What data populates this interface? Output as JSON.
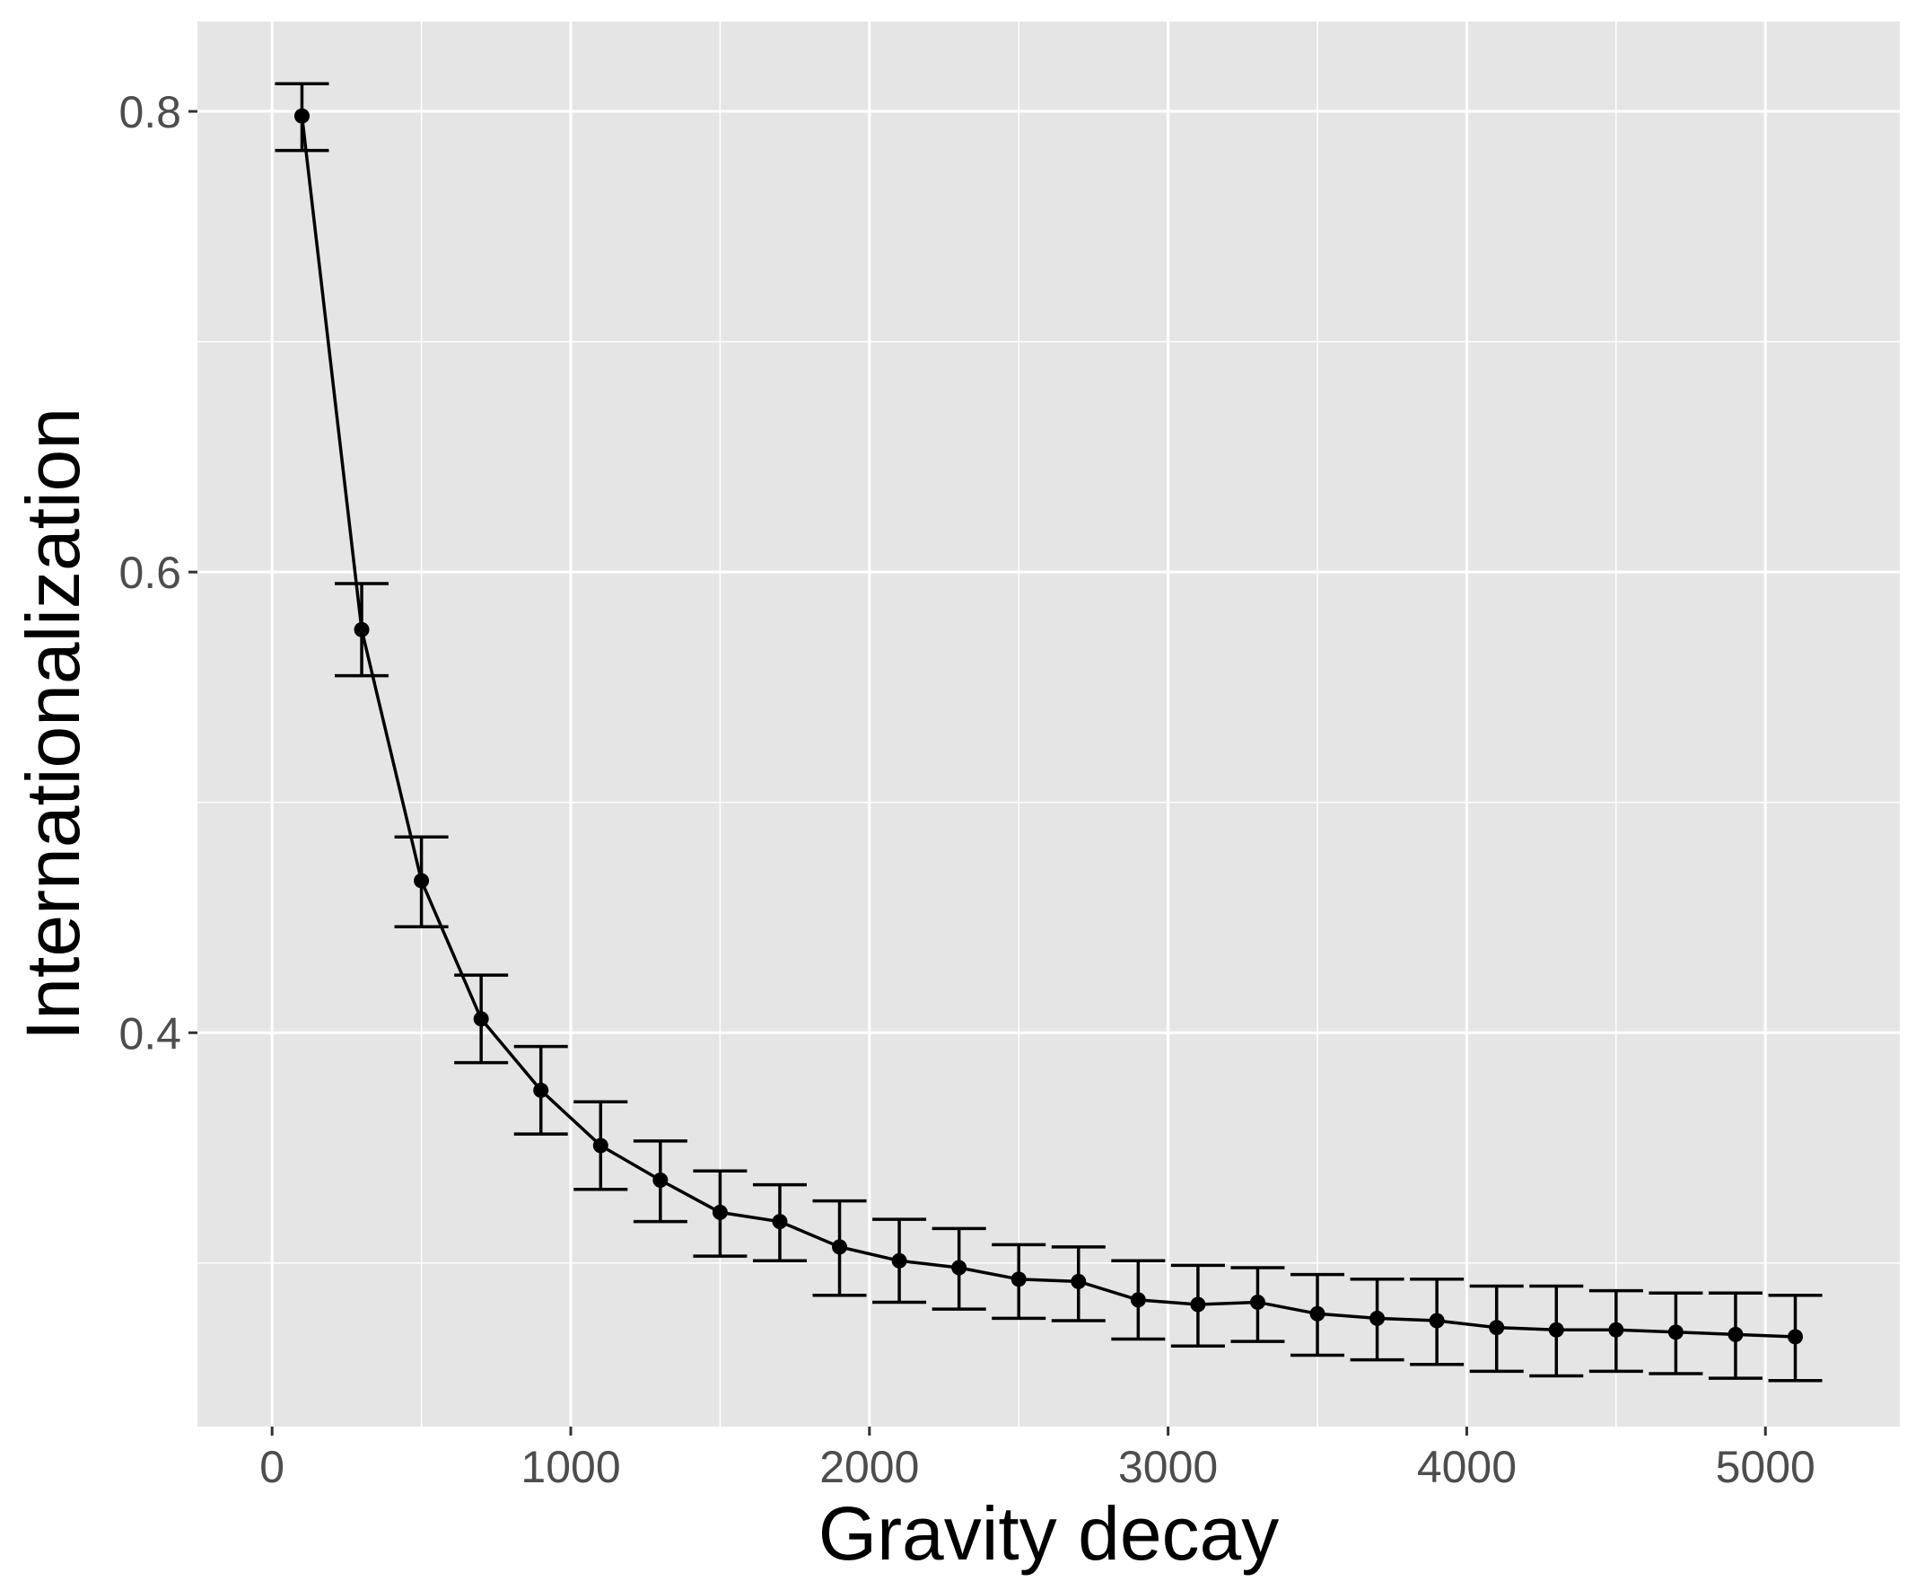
{
  "chart_data": {
    "type": "line",
    "title": "",
    "xlabel": "Gravity decay",
    "ylabel": "Internationalization",
    "xlim": [
      -250,
      5450
    ],
    "ylim": [
      0.229,
      0.839
    ],
    "x_ticks": [
      0,
      1000,
      2000,
      3000,
      4000,
      5000
    ],
    "x_tick_labels": [
      "0",
      "1000",
      "2000",
      "3000",
      "4000",
      "5000"
    ],
    "y_ticks": [
      0.4,
      0.6,
      0.8
    ],
    "y_tick_labels": [
      "0.4",
      "0.6",
      "0.8"
    ],
    "grid": true,
    "legend": "none",
    "style": {
      "panel_background": "#e5e5e5",
      "grid_color": "#ffffff",
      "line_color": "#000000",
      "point_color": "#000000"
    },
    "series": [
      {
        "x": [
          100,
          300,
          500,
          700,
          900,
          1100,
          1300,
          1500,
          1700,
          1900,
          2100,
          2300,
          2500,
          2700,
          2900,
          3100,
          3300,
          3500,
          3700,
          3900,
          4100,
          4300,
          4500,
          4700,
          4900,
          5100
        ],
        "y": [
          0.798,
          0.575,
          0.466,
          0.406,
          0.375,
          0.351,
          0.336,
          0.322,
          0.318,
          0.307,
          0.301,
          0.298,
          0.293,
          0.292,
          0.284,
          0.282,
          0.283,
          0.278,
          0.276,
          0.275,
          0.272,
          0.271,
          0.271,
          0.27,
          0.269,
          0.268
        ],
        "error_low": [
          0.783,
          0.555,
          0.446,
          0.387,
          0.356,
          0.332,
          0.318,
          0.303,
          0.301,
          0.286,
          0.283,
          0.28,
          0.276,
          0.275,
          0.267,
          0.264,
          0.266,
          0.26,
          0.258,
          0.256,
          0.253,
          0.251,
          0.253,
          0.252,
          0.25,
          0.249
        ],
        "error_high": [
          0.812,
          0.595,
          0.485,
          0.425,
          0.394,
          0.37,
          0.353,
          0.34,
          0.334,
          0.327,
          0.319,
          0.315,
          0.308,
          0.307,
          0.301,
          0.299,
          0.298,
          0.295,
          0.293,
          0.293,
          0.29,
          0.29,
          0.288,
          0.287,
          0.287,
          0.286
        ]
      }
    ]
  }
}
